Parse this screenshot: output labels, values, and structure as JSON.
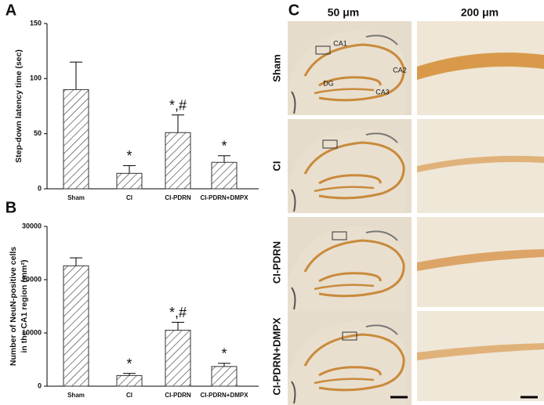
{
  "panel_labels": [
    "A",
    "B",
    "C"
  ],
  "chart_data": [
    {
      "type": "bar",
      "ylabel": [
        "Step-down latency time (sec)"
      ],
      "categories": [
        "Sham",
        "CI",
        "CI-PDRN",
        "CI-PDRN+DMPX"
      ],
      "values": [
        90,
        14,
        51,
        24
      ],
      "errors": [
        25,
        7,
        16,
        6
      ],
      "value_annotations": [
        null,
        "*",
        "*,#",
        "*"
      ],
      "ylim": [
        0,
        150
      ],
      "yticks": [
        0,
        50,
        100,
        150
      ],
      "color": "#333333",
      "hatch": true
    },
    {
      "type": "bar",
      "ylabel": [
        "Number of NeuN-positive cells",
        "in the CA1 region (mm²)"
      ],
      "categories": [
        "Sham",
        "CI",
        "CI-PDRN",
        "CI-PDRN+DMPX"
      ],
      "values": [
        22600,
        2000,
        10500,
        3700
      ],
      "errors": [
        1500,
        400,
        1500,
        600
      ],
      "value_annotations": [
        null,
        "*",
        "*,#",
        "*"
      ],
      "ylim": [
        0,
        30000
      ],
      "yticks": [
        0,
        10000,
        20000,
        30000
      ],
      "color": "#333333",
      "hatch": true
    }
  ],
  "micrographs": {
    "columns": [
      "50 μm",
      "200 μm"
    ],
    "rows": [
      "Sham",
      "CI",
      "CI-PDRN",
      "CI-PDRN+DMPX"
    ],
    "regions": [
      "CA1",
      "CA2",
      "CA3",
      "DG"
    ]
  }
}
